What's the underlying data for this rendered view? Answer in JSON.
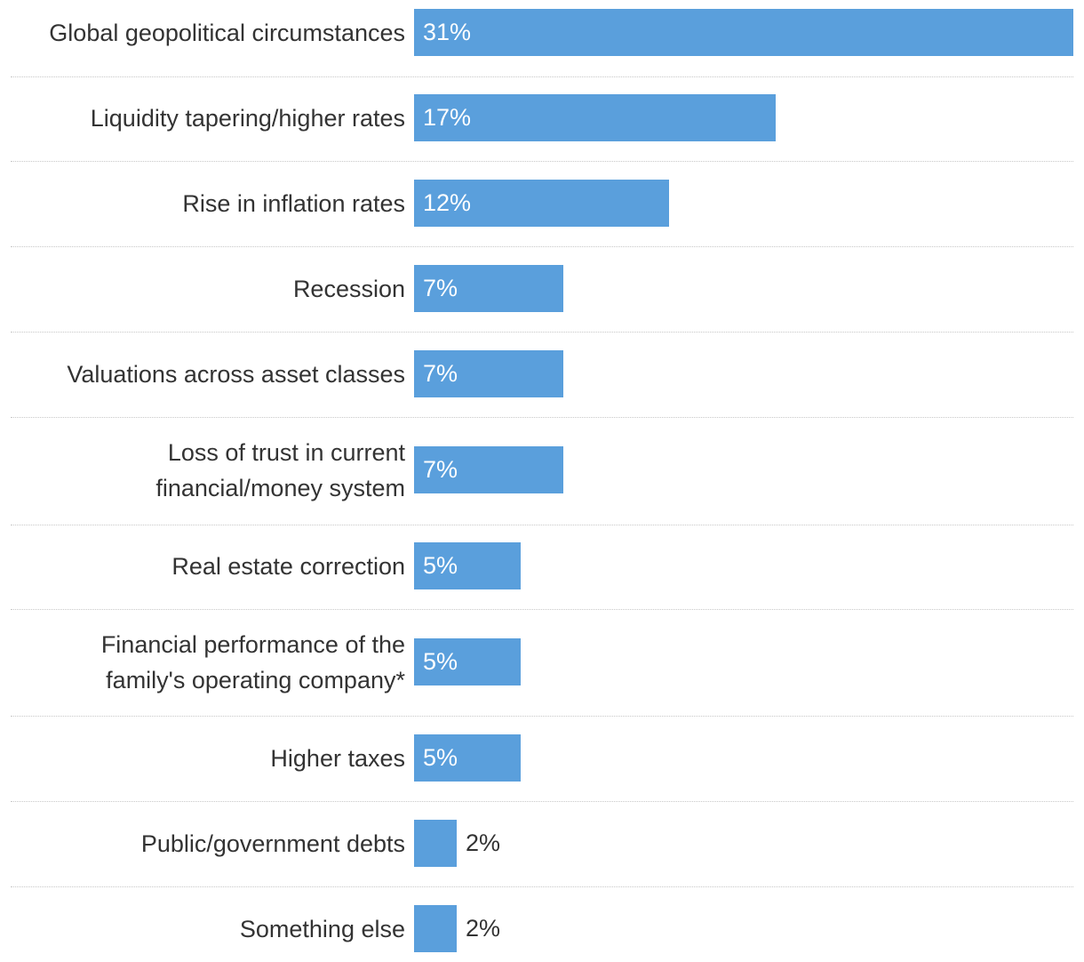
{
  "colors": {
    "bar": "#5a9fdc",
    "text": "#333333",
    "divider": "#c8c8c8"
  },
  "chart_data": {
    "type": "bar",
    "orientation": "horizontal",
    "title": "",
    "xlabel": "",
    "ylabel": "",
    "xlim": [
      0,
      31
    ],
    "unit": "%",
    "grid": false,
    "categories": [
      "Global geopolitical circumstances",
      "Liquidity tapering/higher rates",
      "Rise in inflation rates",
      "Recession",
      "Valuations across asset classes",
      "Loss of trust in current financial/money system",
      "Real estate correction",
      "Financial performance of the family's operating company*",
      "Higher taxes",
      "Public/government debts",
      "Something else"
    ],
    "values": [
      31,
      17,
      12,
      7,
      7,
      7,
      5,
      5,
      5,
      2,
      2
    ],
    "value_labels": [
      "31%",
      "17%",
      "12%",
      "7%",
      "7%",
      "7%",
      "5%",
      "5%",
      "5%",
      "2%",
      "2%"
    ]
  }
}
